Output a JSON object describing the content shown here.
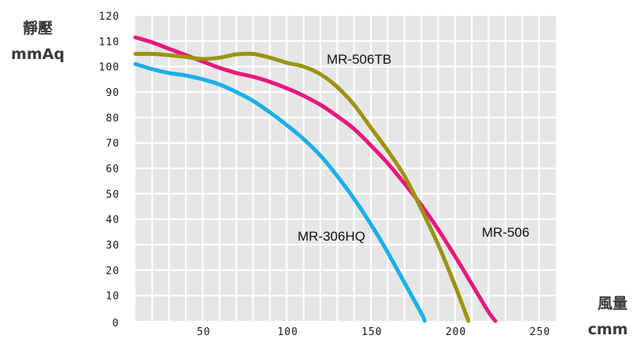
{
  "chart_data": {
    "type": "line",
    "xlabel": {
      "line1": "風量",
      "line2": "cmm"
    },
    "ylabel": {
      "line1": "靜壓",
      "line2": "mmAq"
    },
    "xlim": [
      0,
      250
    ],
    "ylim": [
      0,
      120
    ],
    "x_ticks": [
      0,
      50,
      100,
      150,
      200,
      250
    ],
    "y_ticks": [
      10,
      20,
      30,
      40,
      50,
      60,
      70,
      80,
      90,
      100,
      110,
      120
    ],
    "grid": true,
    "series": [
      {
        "name": "MR-306HQ",
        "color": "#1ab0e8",
        "points": [
          [
            0,
            101
          ],
          [
            10,
            99
          ],
          [
            20,
            97.5
          ],
          [
            30,
            96.5
          ],
          [
            40,
            95
          ],
          [
            50,
            93
          ],
          [
            60,
            90
          ],
          [
            70,
            86.5
          ],
          [
            80,
            82
          ],
          [
            90,
            77
          ],
          [
            100,
            71.5
          ],
          [
            110,
            65
          ],
          [
            120,
            57
          ],
          [
            130,
            48
          ],
          [
            140,
            38
          ],
          [
            150,
            27
          ],
          [
            160,
            15
          ],
          [
            170,
            3
          ],
          [
            172,
            0
          ]
        ]
      },
      {
        "name": "MR-506",
        "color": "#e8187c",
        "points": [
          [
            0,
            111.5
          ],
          [
            10,
            109.5
          ],
          [
            20,
            107
          ],
          [
            30,
            104.5
          ],
          [
            40,
            102
          ],
          [
            50,
            99.5
          ],
          [
            60,
            97.5
          ],
          [
            70,
            96
          ],
          [
            80,
            94
          ],
          [
            90,
            91.5
          ],
          [
            100,
            88.5
          ],
          [
            110,
            85
          ],
          [
            120,
            80.5
          ],
          [
            130,
            75.5
          ],
          [
            140,
            69
          ],
          [
            150,
            62
          ],
          [
            160,
            54
          ],
          [
            170,
            45.5
          ],
          [
            180,
            36
          ],
          [
            190,
            25.5
          ],
          [
            200,
            14.5
          ],
          [
            210,
            3.5
          ],
          [
            214,
            0
          ]
        ]
      },
      {
        "name": "MR-506TB",
        "color": "#9b9411",
        "points": [
          [
            0,
            105
          ],
          [
            10,
            105
          ],
          [
            20,
            104.5
          ],
          [
            30,
            103.8
          ],
          [
            40,
            103
          ],
          [
            50,
            103.5
          ],
          [
            60,
            104.8
          ],
          [
            70,
            105
          ],
          [
            80,
            103.5
          ],
          [
            90,
            101.5
          ],
          [
            100,
            100
          ],
          [
            110,
            97
          ],
          [
            120,
            92
          ],
          [
            130,
            85
          ],
          [
            140,
            76
          ],
          [
            150,
            67
          ],
          [
            160,
            57
          ],
          [
            170,
            44
          ],
          [
            180,
            30
          ],
          [
            190,
            14
          ],
          [
            198,
            0
          ]
        ]
      }
    ]
  }
}
